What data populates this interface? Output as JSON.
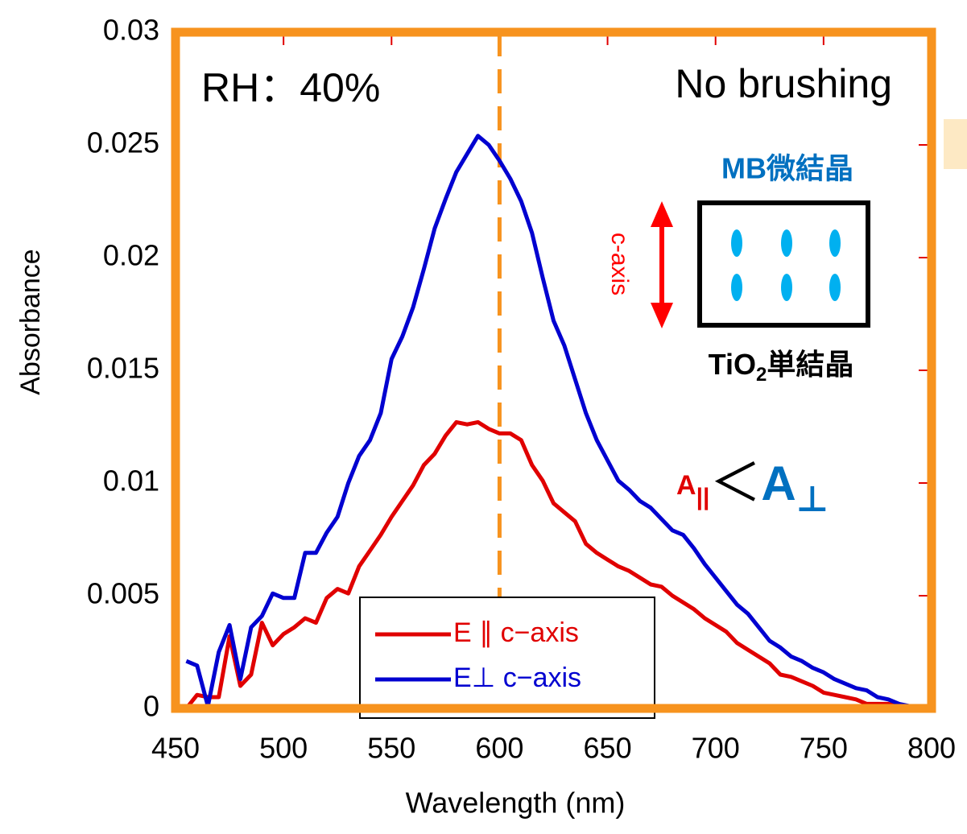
{
  "chart_data": {
    "type": "line",
    "x_label": "Wavelength (nm)",
    "y_label": "Absorbance",
    "xlim": [
      450,
      800
    ],
    "ylim": [
      0,
      0.03
    ],
    "xticks": [
      450,
      500,
      550,
      600,
      650,
      700,
      750,
      800
    ],
    "yticks": [
      0,
      0.005,
      0.01,
      0.015,
      0.02,
      0.025,
      0.03
    ],
    "legend": "lower center",
    "frame_color": "#f7931e",
    "vline": 600,
    "x": [
      455,
      460,
      465,
      470,
      475,
      480,
      485,
      490,
      495,
      500,
      505,
      510,
      515,
      520,
      525,
      530,
      535,
      540,
      545,
      550,
      555,
      560,
      565,
      570,
      575,
      580,
      585,
      590,
      595,
      600,
      605,
      610,
      615,
      620,
      625,
      630,
      635,
      640,
      645,
      650,
      655,
      660,
      665,
      670,
      675,
      680,
      685,
      690,
      695,
      700,
      705,
      710,
      715,
      720,
      725,
      730,
      735,
      740,
      745,
      750,
      755,
      760,
      765,
      770,
      775,
      780,
      785,
      790,
      795
    ],
    "series": [
      {
        "name": "E ∥ c−axis",
        "color": "#e00000",
        "values": [
          0.0,
          0.0006,
          0.0005,
          0.0005,
          0.0032,
          0.001,
          0.0015,
          0.0038,
          0.0028,
          0.0033,
          0.0036,
          0.004,
          0.0038,
          0.0049,
          0.0053,
          0.0051,
          0.0063,
          0.007,
          0.0077,
          0.0085,
          0.0092,
          0.0099,
          0.0108,
          0.0113,
          0.0121,
          0.0127,
          0.0126,
          0.0127,
          0.0124,
          0.0122,
          0.0122,
          0.0119,
          0.0108,
          0.0101,
          0.0091,
          0.0087,
          0.0083,
          0.0073,
          0.0069,
          0.0066,
          0.0063,
          0.0061,
          0.0058,
          0.0055,
          0.0054,
          0.005,
          0.0047,
          0.0044,
          0.004,
          0.0037,
          0.0034,
          0.0029,
          0.0026,
          0.0023,
          0.002,
          0.0015,
          0.0014,
          0.0012,
          0.001,
          0.0007,
          0.0006,
          0.0005,
          0.0004,
          0.0002,
          0.0002,
          0.0002,
          0.0001,
          0,
          0
        ]
      },
      {
        "name": "E⊥ c−axis",
        "color": "#0000d0",
        "values": [
          0.0021,
          0.0019,
          0.0001,
          0.0025,
          0.0037,
          0.0013,
          0.0036,
          0.0041,
          0.0051,
          0.0049,
          0.0049,
          0.0069,
          0.0069,
          0.0078,
          0.0085,
          0.01,
          0.0112,
          0.0119,
          0.0131,
          0.0155,
          0.0165,
          0.0178,
          0.0195,
          0.0213,
          0.0226,
          0.0238,
          0.0246,
          0.0254,
          0.025,
          0.0243,
          0.0235,
          0.0225,
          0.0211,
          0.0191,
          0.0172,
          0.0161,
          0.0146,
          0.0131,
          0.0119,
          0.011,
          0.0101,
          0.0097,
          0.0092,
          0.0089,
          0.0084,
          0.0079,
          0.0077,
          0.0071,
          0.0064,
          0.0058,
          0.0052,
          0.0046,
          0.0042,
          0.0036,
          0.003,
          0.0027,
          0.0023,
          0.0021,
          0.0018,
          0.0016,
          0.0013,
          0.0011,
          0.0009,
          0.0008,
          0.0005,
          0.0004,
          0.0002,
          0.0001,
          0
        ]
      }
    ],
    "annotations": {
      "rh": "RH：40%",
      "condition": "No brushing",
      "crystal": "MB微結晶",
      "axis": "c-axis",
      "substrate": {
        "text": "TiO",
        "sub": "2",
        "rest": "単結晶"
      },
      "relation": {
        "left": "A",
        "left_sub": "||",
        "op": "＜",
        "right": "A",
        "right_sub": "⊥"
      }
    }
  }
}
